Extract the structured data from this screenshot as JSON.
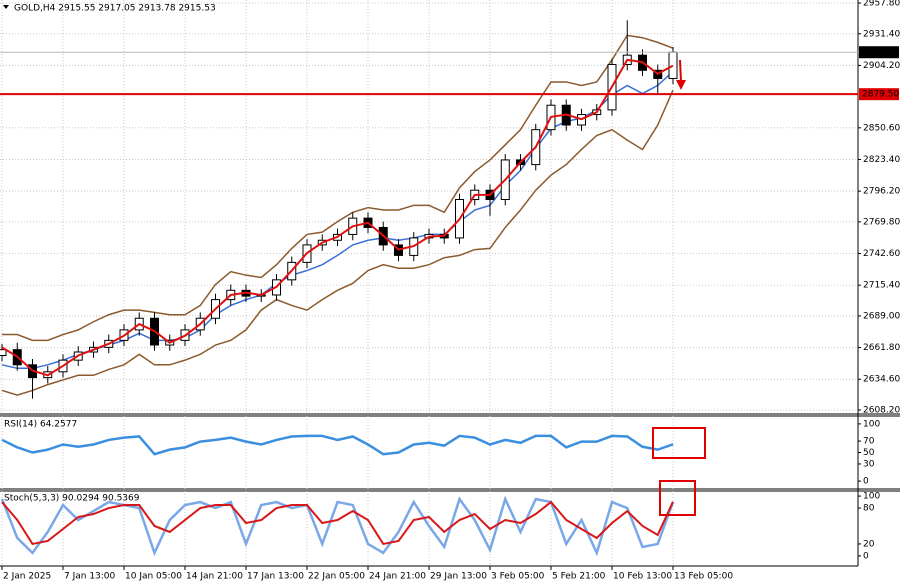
{
  "chart_data": [
    {
      "type": "candlestick",
      "title": "GOLD,H4 2915.55 2917.05 2913.78 2915.53",
      "categories": [
        "2 Jan 2025",
        null,
        null,
        null,
        "7 Jan 13:00",
        null,
        null,
        null,
        "10 Jan 05:00",
        null,
        null,
        null,
        "14 Jan 21:00",
        null,
        null,
        null,
        "17 Jan 13:00",
        null,
        null,
        null,
        "22 Jan 05:00",
        null,
        null,
        null,
        "24 Jan 21:00",
        null,
        null,
        null,
        "29 Jan 13:00",
        null,
        null,
        null,
        "3 Feb 05:00",
        null,
        null,
        null,
        "5 Feb 21:00",
        null,
        null,
        null,
        "10 Feb 13:00",
        null,
        null,
        null,
        "13 Feb 05:00"
      ],
      "opens": [
        2655,
        2660,
        2647,
        2636,
        2641,
        2651,
        2658,
        2662,
        2668,
        2677,
        2687,
        2664,
        2668,
        2677,
        2687,
        2703,
        2711,
        2706,
        2707,
        2720,
        2735,
        2750,
        2754,
        2759,
        2773,
        2765,
        2750,
        2741,
        2756,
        2759,
        2756,
        2789,
        2797,
        2789,
        2823,
        2819,
        2849,
        2870,
        2853,
        2862,
        2866,
        2905,
        2913,
        2900,
        2893
      ],
      "highs": [
        2665,
        2666,
        2652,
        2646,
        2656,
        2663,
        2667,
        2673,
        2682,
        2692,
        2692,
        2673,
        2682,
        2692,
        2708,
        2716,
        2716,
        2712,
        2725,
        2740,
        2755,
        2759,
        2764,
        2778,
        2778,
        2770,
        2755,
        2761,
        2764,
        2764,
        2794,
        2802,
        2802,
        2828,
        2828,
        2854,
        2875,
        2875,
        2867,
        2871,
        2910,
        2943,
        2918,
        2905,
        2920
      ],
      "lows": [
        2650,
        2642,
        2618,
        2631,
        2636,
        2646,
        2653,
        2657,
        2663,
        2672,
        2659,
        2659,
        2663,
        2672,
        2682,
        2698,
        2701,
        2701,
        2702,
        2715,
        2730,
        2745,
        2749,
        2754,
        2760,
        2745,
        2736,
        2736,
        2751,
        2751,
        2751,
        2784,
        2775,
        2784,
        2814,
        2814,
        2844,
        2848,
        2848,
        2857,
        2861,
        2900,
        2895,
        2880,
        2888
      ],
      "closes": [
        2660,
        2647,
        2636,
        2641,
        2651,
        2658,
        2662,
        2668,
        2677,
        2687,
        2664,
        2668,
        2677,
        2687,
        2703,
        2711,
        2706,
        2707,
        2720,
        2735,
        2750,
        2754,
        2759,
        2773,
        2765,
        2750,
        2741,
        2756,
        2759,
        2756,
        2789,
        2797,
        2789,
        2823,
        2819,
        2849,
        2870,
        2853,
        2862,
        2866,
        2905,
        2913,
        2900,
        2893,
        2915.53
      ],
      "overlays": [
        {
          "color": "#8b5a2b",
          "values": [
            2673,
            2673,
            2668,
            2668,
            2673,
            2677,
            2684,
            2690,
            2694,
            2694,
            2692,
            2690,
            2690,
            2698,
            2716,
            2727,
            2724,
            2722,
            2733,
            2747,
            2759,
            2761,
            2770,
            2778,
            2782,
            2780,
            2780,
            2784,
            2784,
            2778,
            2799,
            2813,
            2823,
            2836,
            2849,
            2870,
            2890,
            2890,
            2887,
            2890,
            2909,
            2930,
            2928,
            2924,
            2919
          ]
        },
        {
          "color": "#8b5a2b",
          "values": [
            2625,
            2621,
            2625,
            2630,
            2634,
            2638,
            2638,
            2643,
            2647,
            2656,
            2647,
            2647,
            2651,
            2656,
            2664,
            2668,
            2677,
            2694,
            2703,
            2698,
            2694,
            2703,
            2711,
            2717,
            2728,
            2733,
            2730,
            2730,
            2733,
            2739,
            2741,
            2746,
            2747,
            2765,
            2780,
            2797,
            2810,
            2819,
            2832,
            2844,
            2849,
            2840,
            2832,
            2853,
            2883
          ]
        },
        {
          "color": "#3a6fd8",
          "values": [
            2647,
            2644,
            2644,
            2647,
            2651,
            2656,
            2660,
            2664,
            2668,
            2674,
            2668,
            2668,
            2670,
            2677,
            2690,
            2698,
            2703,
            2707,
            2717,
            2724,
            2728,
            2733,
            2741,
            2750,
            2754,
            2756,
            2754,
            2756,
            2759,
            2759,
            2770,
            2780,
            2784,
            2801,
            2814,
            2833,
            2850,
            2856,
            2859,
            2866,
            2879,
            2887,
            2880,
            2887,
            2899
          ]
        },
        {
          "color": "#e01010",
          "values": [
            2662,
            2654,
            2642,
            2638,
            2646,
            2655,
            2660,
            2665,
            2672,
            2682,
            2676,
            2666,
            2672,
            2682,
            2695,
            2707,
            2709,
            2707,
            2714,
            2728,
            2743,
            2752,
            2757,
            2766,
            2769,
            2758,
            2746,
            2749,
            2757,
            2758,
            2772,
            2793,
            2793,
            2806,
            2821,
            2834,
            2860,
            2862,
            2858,
            2864,
            2886,
            2909,
            2907,
            2897,
            2904
          ]
        }
      ],
      "price_line": 2915.53,
      "level": {
        "value": 2879.5,
        "label": "2879.50",
        "color": "#e00000"
      },
      "ylim": [
        2605.6,
        2960.4
      ],
      "yticks": [
        {
          "value": 2957.8,
          "label": "2957.80"
        },
        {
          "value": 2931.4,
          "label": "2931.40"
        },
        {
          "value": 2904.2,
          "label": "2904.20"
        },
        {
          "value": 2850.6,
          "label": "2850.60"
        },
        {
          "value": 2823.4,
          "label": "2823.40"
        },
        {
          "value": 2796.2,
          "label": "2796.20"
        },
        {
          "value": 2769.8,
          "label": "2769.80"
        },
        {
          "value": 2742.6,
          "label": "2742.60"
        },
        {
          "value": 2715.4,
          "label": "2715.40"
        },
        {
          "value": 2689,
          "label": "2689.00"
        },
        {
          "value": 2661.8,
          "label": "2661.80"
        },
        {
          "value": 2634.6,
          "label": "2634.60"
        },
        {
          "value": 2608.2,
          "label": "2608.20"
        }
      ],
      "grid": true
    },
    {
      "type": "line",
      "title": "RSI(14) 64.2577",
      "series": [
        {
          "color": "#3a8fe0",
          "values": [
            72,
            59,
            50,
            55,
            64,
            60,
            64,
            72,
            76,
            78,
            47,
            55,
            59,
            69,
            72,
            76,
            69,
            64,
            72,
            78,
            79,
            79,
            72,
            78,
            64,
            47,
            50,
            64,
            67,
            62,
            79,
            76,
            64,
            72,
            67,
            79,
            79,
            59,
            69,
            69,
            79,
            78,
            60,
            55,
            64.26
          ]
        }
      ],
      "ylim": [
        -13.8,
        113.8
      ],
      "yticks": [
        100,
        70,
        50,
        30,
        0
      ]
    },
    {
      "type": "line",
      "title": "Stoch(5,3,3) 90.0294 90.5369",
      "series": [
        {
          "color": "#7aa7e8",
          "values": [
            95,
            30,
            5,
            40,
            85,
            60,
            75,
            90,
            85,
            80,
            5,
            60,
            85,
            90,
            80,
            90,
            20,
            85,
            90,
            80,
            85,
            20,
            90,
            85,
            20,
            5,
            40,
            90,
            50,
            15,
            95,
            60,
            10,
            95,
            40,
            95,
            90,
            20,
            60,
            5,
            90,
            80,
            15,
            20,
            90.03
          ]
        },
        {
          "color": "#d81818",
          "values": [
            90,
            60,
            20,
            25,
            45,
            65,
            70,
            80,
            85,
            85,
            50,
            40,
            60,
            80,
            85,
            85,
            55,
            60,
            80,
            85,
            85,
            55,
            60,
            75,
            60,
            20,
            25,
            60,
            65,
            40,
            60,
            70,
            45,
            60,
            55,
            70,
            90,
            60,
            45,
            30,
            55,
            75,
            50,
            35,
            90.54
          ]
        }
      ],
      "ylim": [
        -16.9,
        108.5
      ],
      "yticks": [
        100,
        80,
        20,
        0
      ]
    }
  ]
}
